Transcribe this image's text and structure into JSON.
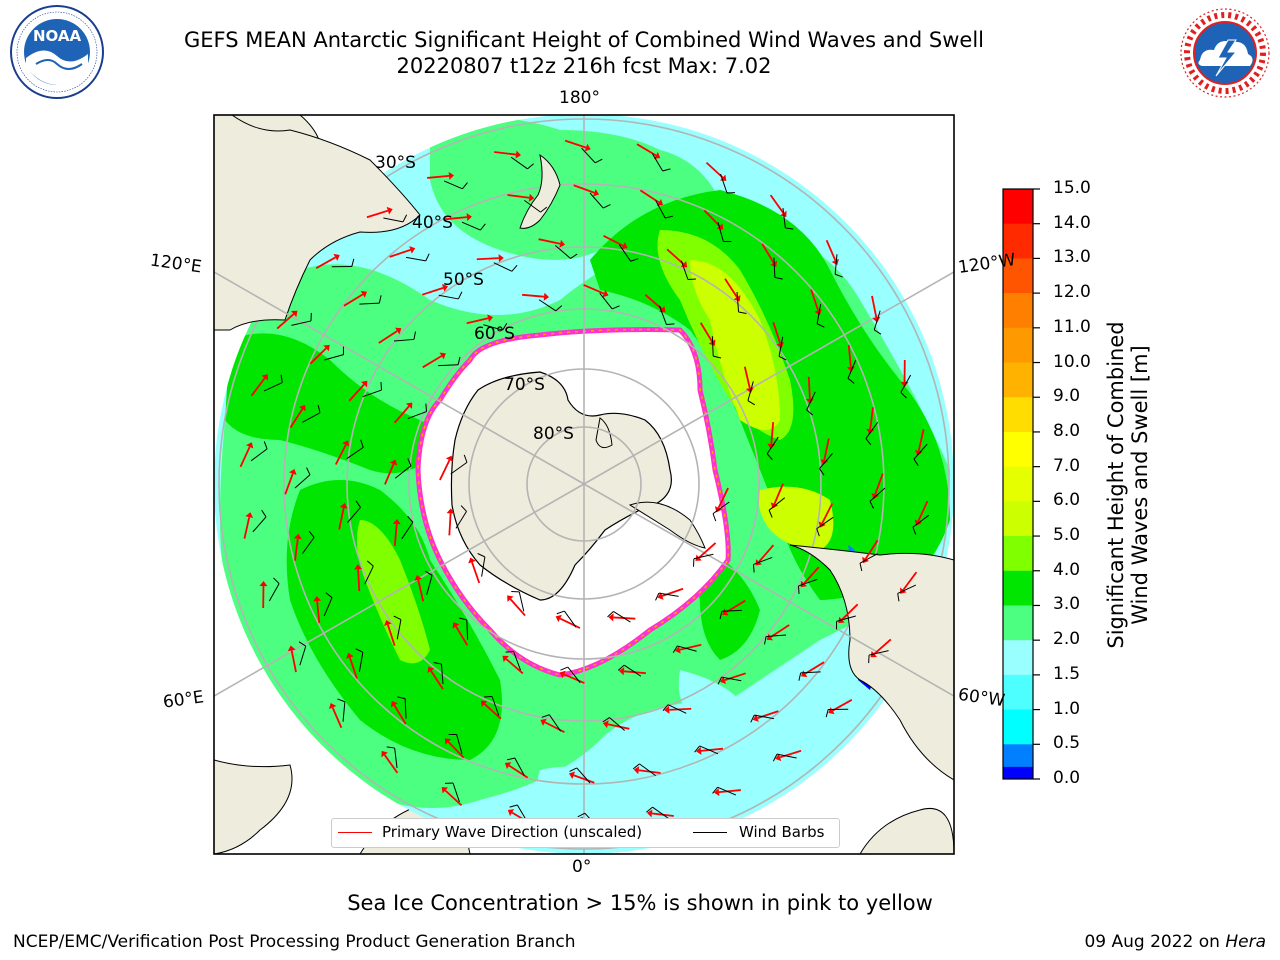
{
  "header": {
    "title_line1": "GEFS MEAN Antarctic Significant Height of Combined Wind Waves and Swell",
    "title_line2": "20220807 t12z 216h fcst   Max: 7.02"
  },
  "logos": {
    "left": {
      "name": "NOAA",
      "text": "NOAA",
      "ring_text": "NATIONAL OCEANIC AND ATMOSPHERIC ADMINISTRATION · U.S. DEPARTMENT OF COMMERCE"
    },
    "right": {
      "name": "National Weather Service",
      "ring_text": "NATIONAL WEATHER SERVICE"
    }
  },
  "map": {
    "projection": "south-polar-stereographic",
    "longitude_labels": {
      "top": "180°",
      "bottom": "0°",
      "left_upper": "120°E",
      "left_lower": "60°E",
      "right_upper": "120°W",
      "right_lower": "60°W"
    },
    "latitude_labels": [
      "30°S",
      "40°S",
      "50°S",
      "60°S",
      "70°S",
      "80°S"
    ],
    "colors": {
      "land": "#EEECDC",
      "ocean_low": "#99FFFF",
      "ocean_mid": "#4DFF80",
      "ocean_high": "#00E600",
      "ice": "#FFFFFF",
      "ice_edge": "#FF33CC",
      "ice_edge_inner": "#FFA500",
      "grid": "#B4B4B4",
      "arrow": "#FF0000",
      "barb": "#000000"
    },
    "max_value": 7.02,
    "unit": "m",
    "wave_arrows": "Primary Wave Direction (unscaled)",
    "wind_barbs": "Wind Barbs"
  },
  "colorbar": {
    "label_line1": "Significant Height of Combined",
    "label_line2": "Wind Waves and Swell [m]",
    "ticks": [
      "15.0",
      "14.0",
      "13.0",
      "12.0",
      "11.0",
      "10.0",
      "9.0",
      "8.0",
      "7.0",
      "6.0",
      "5.0",
      "4.0",
      "3.0",
      "2.0",
      "1.5",
      "1.0",
      "0.5",
      "0.0"
    ],
    "colors_top_to_bottom": [
      "#FF0000",
      "#FF2A00",
      "#FF5500",
      "#FF7F00",
      "#FF9900",
      "#FFB300",
      "#FFDD00",
      "#FFFF00",
      "#E6FF00",
      "#CCFF00",
      "#80FF00",
      "#00E600",
      "#4DFF80",
      "#99FFFF",
      "#4DFFFF",
      "#00FFFF",
      "#0080FF",
      "#0000FF"
    ]
  },
  "legend": {
    "wave_label": "Primary Wave Direction (unscaled)",
    "wave_color": "#FF0000",
    "barb_label": "Wind Barbs",
    "barb_color": "#000000"
  },
  "footer": {
    "note": "Sea Ice Concentration > 15% is shown in pink to yellow",
    "left": "NCEP/EMC/Verification Post Processing Product Generation Branch",
    "right_prefix": "09 Aug 2022 on",
    "right_machine": "Hera"
  }
}
